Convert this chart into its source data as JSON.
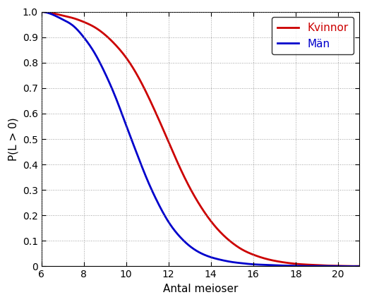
{
  "title": "",
  "xlabel": "Antal meioser",
  "ylabel": "P(L > 0)",
  "xlim": [
    6,
    21
  ],
  "ylim": [
    0,
    1.0
  ],
  "xticks": [
    6,
    8,
    10,
    12,
    14,
    16,
    18,
    20
  ],
  "yticks": [
    0.0,
    0.1,
    0.2,
    0.3,
    0.4,
    0.5,
    0.6,
    0.7,
    0.8,
    0.9,
    1.0
  ],
  "kvinnor_color": "#cc0000",
  "man_color": "#0000cc",
  "legend_labels": [
    "Kvinnor",
    "Män"
  ],
  "line_width": 2.0,
  "background_color": "#ffffff",
  "grid_color": "#888888",
  "xlabel_color": "#000000",
  "ylabel_color": "#000000",
  "tick_label_color": "#000000",
  "legend_fontsize": 11,
  "axis_label_fontsize": 11,
  "tick_fontsize": 10,
  "kvinnor_x": [
    6,
    6.5,
    7,
    7.5,
    8,
    8.5,
    9,
    9.5,
    10,
    10.5,
    11,
    11.5,
    12,
    12.5,
    13,
    13.5,
    14,
    14.5,
    15,
    15.5,
    16,
    16.5,
    17,
    17.5,
    18,
    18.5,
    19,
    19.5,
    20,
    20.5,
    21
  ],
  "kvinnor_y": [
    1.0,
    0.995,
    0.985,
    0.975,
    0.96,
    0.94,
    0.91,
    0.87,
    0.82,
    0.755,
    0.675,
    0.585,
    0.49,
    0.395,
    0.31,
    0.238,
    0.178,
    0.13,
    0.093,
    0.065,
    0.046,
    0.032,
    0.022,
    0.015,
    0.01,
    0.007,
    0.005,
    0.003,
    0.002,
    0.001,
    0.001
  ],
  "man_x": [
    6,
    6.5,
    7,
    7.5,
    8,
    8.5,
    9,
    9.5,
    10,
    10.5,
    11,
    11.5,
    12,
    12.5,
    13,
    13.5,
    14,
    14.5,
    15,
    15.5,
    16,
    16.5,
    17,
    17.5,
    18,
    18.5,
    19,
    19.5,
    20,
    20.5,
    21
  ],
  "man_y": [
    1.0,
    0.99,
    0.97,
    0.945,
    0.9,
    0.84,
    0.76,
    0.665,
    0.555,
    0.445,
    0.34,
    0.25,
    0.175,
    0.12,
    0.08,
    0.053,
    0.036,
    0.025,
    0.017,
    0.012,
    0.008,
    0.006,
    0.004,
    0.003,
    0.002,
    0.001,
    0.001,
    0.001,
    0.0,
    0.0,
    0.0
  ]
}
